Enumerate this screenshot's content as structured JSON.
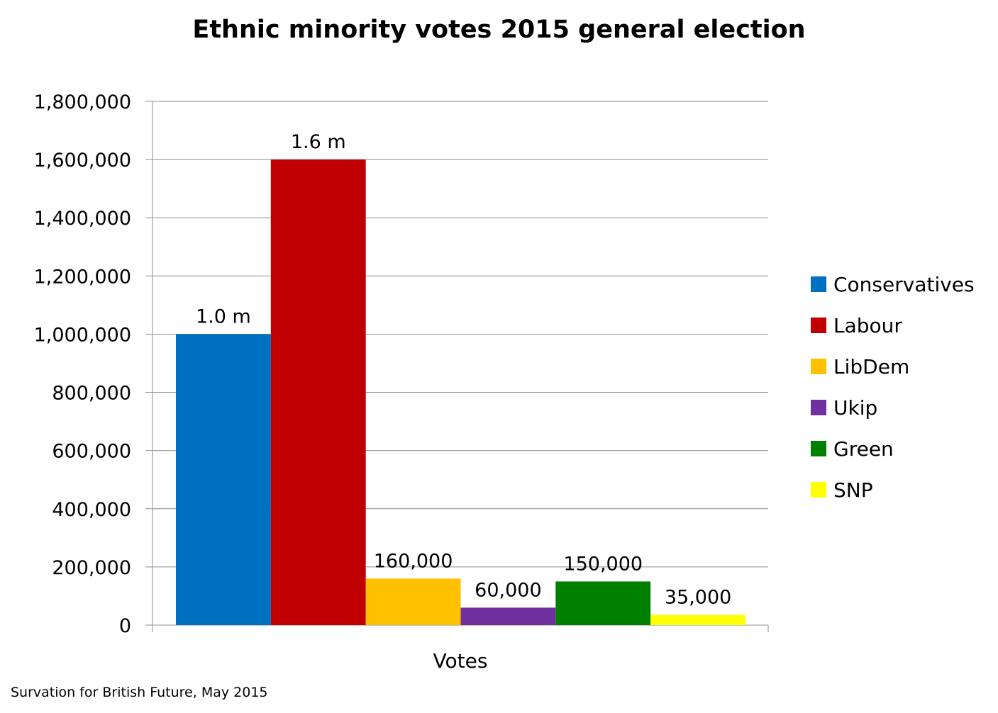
{
  "chart_data": {
    "type": "bar",
    "title": "Ethnic minority votes 2015 general election",
    "xlabel": "Votes",
    "ylabel": "",
    "categories": [
      "Votes"
    ],
    "ylim": [
      0,
      1800000
    ],
    "yticks": [
      0,
      200000,
      400000,
      600000,
      800000,
      1000000,
      1200000,
      1400000,
      1600000,
      1800000
    ],
    "ytick_labels": [
      "0",
      "200,000",
      "400,000",
      "600,000",
      "800,000",
      "1,000,000",
      "1,200,000",
      "1,400,000",
      "1,600,000",
      "1,800,000"
    ],
    "grid": true,
    "legend_position": "right",
    "series": [
      {
        "name": "Conservatives",
        "values": [
          1000000
        ],
        "label": "1.0 m",
        "color": "#0070C0"
      },
      {
        "name": "Labour",
        "values": [
          1600000
        ],
        "label": "1.6 m",
        "color": "#C00000"
      },
      {
        "name": "LibDem",
        "values": [
          160000
        ],
        "label": "160,000",
        "color": "#FFC000"
      },
      {
        "name": "Ukip",
        "values": [
          60000
        ],
        "label": "60,000",
        "color": "#7030A0"
      },
      {
        "name": "Green",
        "values": [
          150000
        ],
        "label": "150,000",
        "color": "#008000"
      },
      {
        "name": "SNP",
        "values": [
          35000
        ],
        "label": "35,000",
        "color": "#FFFF00"
      }
    ]
  },
  "source_note": "Survation for British Future, May 2015"
}
